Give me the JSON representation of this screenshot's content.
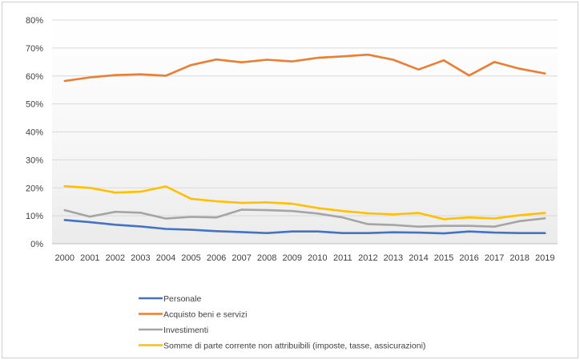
{
  "chart_data": {
    "type": "line",
    "categories": [
      "2000",
      "2001",
      "2002",
      "2003",
      "2004",
      "2005",
      "2006",
      "2007",
      "2008",
      "2009",
      "2010",
      "2011",
      "2012",
      "2013",
      "2014",
      "2015",
      "2016",
      "2017",
      "2018",
      "2019"
    ],
    "y_ticks": [
      "0%",
      "10%",
      "20%",
      "30%",
      "40%",
      "50%",
      "60%",
      "70%",
      "80%"
    ],
    "ylim": [
      0,
      80
    ],
    "y_unit": "%",
    "grid": true,
    "legend_position": "bottom",
    "series": [
      {
        "name": "Personale",
        "color": "#4472C4",
        "values": [
          8.5,
          7.7,
          6.8,
          6.2,
          5.3,
          5.0,
          4.5,
          4.2,
          3.8,
          4.4,
          4.4,
          3.8,
          3.8,
          4.1,
          4.0,
          3.7,
          4.4,
          4.0,
          3.8,
          3.8
        ]
      },
      {
        "name": "Acquisto beni e servizi",
        "color": "#ED7D31",
        "values": [
          58.2,
          59.5,
          60.3,
          60.6,
          60.1,
          63.9,
          65.9,
          64.9,
          65.8,
          65.2,
          66.5,
          67.0,
          67.6,
          65.8,
          62.3,
          65.6,
          60.2,
          65.0,
          62.6,
          60.9
        ]
      },
      {
        "name": "Investimenti",
        "color": "#A5A5A5",
        "values": [
          12.0,
          9.7,
          11.4,
          11.1,
          9.0,
          9.6,
          9.4,
          12.2,
          12.0,
          11.7,
          10.8,
          9.4,
          7.0,
          6.7,
          6.1,
          6.4,
          6.4,
          6.1,
          8.1,
          9.1
        ]
      },
      {
        "name": "Somme di parte corrente non attribuibili (imposte, tasse, assicurazioni)",
        "color": "#FFC000",
        "values": [
          20.6,
          20.0,
          18.3,
          18.6,
          20.5,
          16.1,
          15.2,
          14.6,
          14.8,
          14.3,
          12.8,
          11.7,
          10.9,
          10.5,
          11.0,
          8.8,
          9.4,
          9.0,
          10.2,
          11.0
        ]
      }
    ]
  }
}
